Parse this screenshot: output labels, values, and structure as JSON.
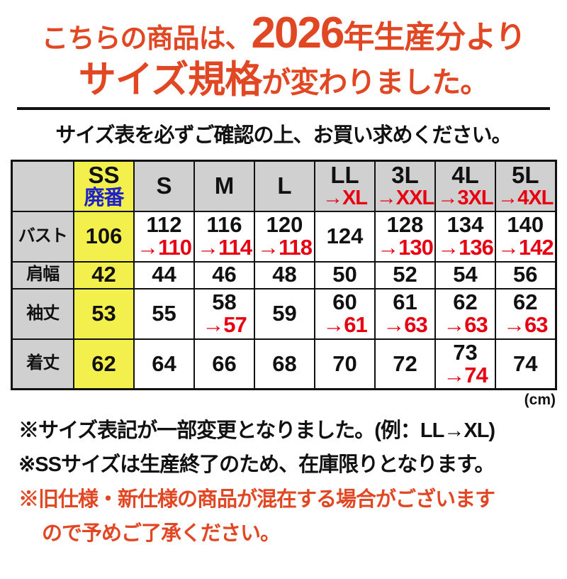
{
  "colors": {
    "accent_orange": "#E24723",
    "table_red": "#E60012",
    "highlight_yellow": "#F3F04E",
    "header_gray": "#D0D0D0",
    "discontinued_blue": "#1E22C8"
  },
  "banner": {
    "line1_prefix": "こちらの商品は、",
    "line1_year": "2026",
    "line1_suffix": "年生産分より",
    "line2_emphasis": "サイズ規格",
    "line2_suffix": "が変わりました。"
  },
  "subtitle": "サイズ表を必ずご確認の上、お買い求めください。",
  "table": {
    "unit_note": "(cm)",
    "columns": [
      {
        "label": "SS",
        "sub": "廃番"
      },
      {
        "label": "S",
        "sub": ""
      },
      {
        "label": "M",
        "sub": ""
      },
      {
        "label": "L",
        "sub": ""
      },
      {
        "label": "LL",
        "sub": "→XL"
      },
      {
        "label": "3L",
        "sub": "→XXL"
      },
      {
        "label": "4L",
        "sub": "→3XL"
      },
      {
        "label": "5L",
        "sub": "→4XL"
      }
    ],
    "rows": [
      {
        "label": "バスト",
        "cells": [
          {
            "old": "106",
            "new": ""
          },
          {
            "old": "112",
            "new": "→110"
          },
          {
            "old": "116",
            "new": "→114"
          },
          {
            "old": "120",
            "new": "→118"
          },
          {
            "old": "124",
            "new": ""
          },
          {
            "old": "128",
            "new": "→130"
          },
          {
            "old": "134",
            "new": "→136"
          },
          {
            "old": "140",
            "new": "→142"
          }
        ]
      },
      {
        "label": "肩幅",
        "cells": [
          {
            "old": "42",
            "new": ""
          },
          {
            "old": "44",
            "new": ""
          },
          {
            "old": "46",
            "new": ""
          },
          {
            "old": "48",
            "new": ""
          },
          {
            "old": "50",
            "new": ""
          },
          {
            "old": "52",
            "new": ""
          },
          {
            "old": "54",
            "new": ""
          },
          {
            "old": "56",
            "new": ""
          }
        ]
      },
      {
        "label": "袖丈",
        "cells": [
          {
            "old": "53",
            "new": ""
          },
          {
            "old": "55",
            "new": ""
          },
          {
            "old": "58",
            "new": "→57"
          },
          {
            "old": "59",
            "new": ""
          },
          {
            "old": "60",
            "new": "→61"
          },
          {
            "old": "61",
            "new": "→63"
          },
          {
            "old": "62",
            "new": "→63"
          },
          {
            "old": "62",
            "new": "→63"
          }
        ]
      },
      {
        "label": "着丈",
        "cells": [
          {
            "old": "62",
            "new": ""
          },
          {
            "old": "64",
            "new": ""
          },
          {
            "old": "66",
            "new": ""
          },
          {
            "old": "68",
            "new": ""
          },
          {
            "old": "70",
            "new": ""
          },
          {
            "old": "72",
            "new": ""
          },
          {
            "old": "73",
            "new": "→74"
          },
          {
            "old": "74",
            "new": ""
          }
        ]
      }
    ]
  },
  "notes": [
    "※サイズ表記が一部変更となりました。(例：LL→XL)",
    "※SSサイズは生産終了のため、在庫限りとなります。",
    "※旧仕様・新仕様の商品が混在する場合がございます",
    "ので予めご了承ください。"
  ]
}
